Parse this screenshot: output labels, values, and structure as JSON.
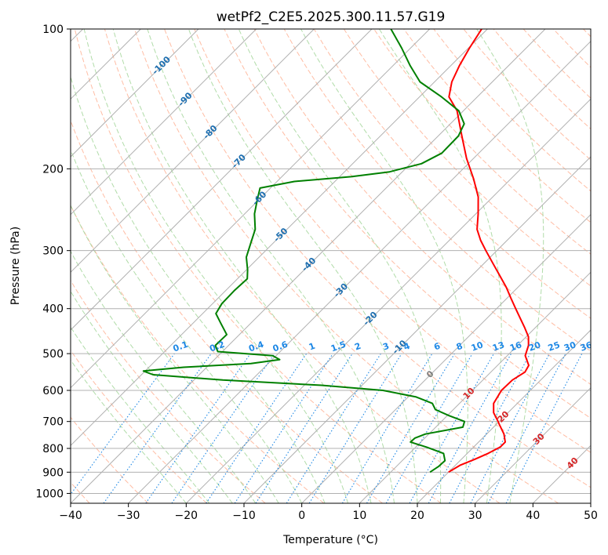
{
  "chart_data": {
    "type": "skew-t",
    "title": "wetPf2_C2E5.2025.300.11.57.G19",
    "xlabel": "Temperature (°C)",
    "ylabel": "Pressure (hPa)",
    "xlim": [
      -40,
      50
    ],
    "ylim_hPa": [
      1050,
      100
    ],
    "xticks": [
      -40,
      -30,
      -20,
      -10,
      0,
      10,
      20,
      30,
      40,
      50
    ],
    "xtick_labels": [
      "−40",
      "−30",
      "−20",
      "−10",
      "0",
      "10",
      "20",
      "30",
      "40",
      "50"
    ],
    "yticks": [
      100,
      200,
      300,
      400,
      500,
      600,
      700,
      800,
      900,
      1000
    ],
    "ytick_labels": [
      "100",
      "200",
      "300",
      "400",
      "500",
      "600",
      "700",
      "800",
      "900",
      "1000"
    ],
    "grid": true,
    "colors": {
      "temperature": "#ff0000",
      "dewpoint": "#008000",
      "isotherm": "#b0b0b0",
      "dry_adiabat": "#ffb69a",
      "moist_adiabat": "#a8d8a0",
      "mixing_ratio": "#1e88e5",
      "label_blue": "#1e6fb0",
      "label_red": "#d62728"
    },
    "series": [
      {
        "name": "Temperature",
        "points": [
          {
            "p": 900,
            "t": 20.0
          },
          {
            "p": 870,
            "t": 20.8
          },
          {
            "p": 845,
            "t": 22.3
          },
          {
            "p": 820,
            "t": 23.6
          },
          {
            "p": 795,
            "t": 24.6
          },
          {
            "p": 775,
            "t": 24.6
          },
          {
            "p": 745,
            "t": 23.0
          },
          {
            "p": 710,
            "t": 20.5
          },
          {
            "p": 700,
            "t": 19.8
          },
          {
            "p": 670,
            "t": 17.5
          },
          {
            "p": 640,
            "t": 15.9
          },
          {
            "p": 600,
            "t": 15.0
          },
          {
            "p": 570,
            "t": 15.1
          },
          {
            "p": 548,
            "t": 15.9
          },
          {
            "p": 530,
            "t": 15.4
          },
          {
            "p": 505,
            "t": 13.1
          },
          {
            "p": 480,
            "t": 11.9
          },
          {
            "p": 460,
            "t": 10.4
          },
          {
            "p": 440,
            "t": 8.2
          },
          {
            "p": 420,
            "t": 5.8
          },
          {
            "p": 400,
            "t": 3.3
          },
          {
            "p": 380,
            "t": 0.7
          },
          {
            "p": 360,
            "t": -2.0
          },
          {
            "p": 340,
            "t": -5.1
          },
          {
            "p": 320,
            "t": -8.4
          },
          {
            "p": 300,
            "t": -11.9
          },
          {
            "p": 285,
            "t": -14.6
          },
          {
            "p": 270,
            "t": -17.1
          },
          {
            "p": 250,
            "t": -19.6
          },
          {
            "p": 230,
            "t": -22.5
          },
          {
            "p": 210,
            "t": -26.5
          },
          {
            "p": 190,
            "t": -31.2
          },
          {
            "p": 170,
            "t": -35.9
          },
          {
            "p": 150,
            "t": -41.1
          },
          {
            "p": 140,
            "t": -44.9
          },
          {
            "p": 130,
            "t": -47.0
          },
          {
            "p": 120,
            "t": -48.5
          },
          {
            "p": 110,
            "t": -49.8
          },
          {
            "p": 100,
            "t": -51.0
          }
        ]
      },
      {
        "name": "Dewpoint",
        "points": [
          {
            "p": 900,
            "t": 16.8
          },
          {
            "p": 875,
            "t": 17.3
          },
          {
            "p": 850,
            "t": 17.4
          },
          {
            "p": 820,
            "t": 15.9
          },
          {
            "p": 795,
            "t": 11.9
          },
          {
            "p": 775,
            "t": 8.2
          },
          {
            "p": 760,
            "t": 8.3
          },
          {
            "p": 745,
            "t": 9.4
          },
          {
            "p": 720,
            "t": 14.7
          },
          {
            "p": 700,
            "t": 14.0
          },
          {
            "p": 680,
            "t": 10.3
          },
          {
            "p": 660,
            "t": 6.9
          },
          {
            "p": 640,
            "t": 5.3
          },
          {
            "p": 620,
            "t": 1.4
          },
          {
            "p": 600,
            "t": -5.5
          },
          {
            "p": 585,
            "t": -17.0
          },
          {
            "p": 570,
            "t": -35.0
          },
          {
            "p": 555,
            "t": -48.0
          },
          {
            "p": 545,
            "t": -50.3
          },
          {
            "p": 535,
            "t": -44.0
          },
          {
            "p": 525,
            "t": -33.0
          },
          {
            "p": 515,
            "t": -28.7
          },
          {
            "p": 505,
            "t": -30.6
          },
          {
            "p": 495,
            "t": -40.8
          },
          {
            "p": 480,
            "t": -42.3
          },
          {
            "p": 455,
            "t": -42.2
          },
          {
            "p": 430,
            "t": -45.2
          },
          {
            "p": 410,
            "t": -47.7
          },
          {
            "p": 390,
            "t": -48.4
          },
          {
            "p": 365,
            "t": -48.5
          },
          {
            "p": 345,
            "t": -48.3
          },
          {
            "p": 330,
            "t": -49.8
          },
          {
            "p": 310,
            "t": -52.2
          },
          {
            "p": 290,
            "t": -53.8
          },
          {
            "p": 270,
            "t": -55.5
          },
          {
            "p": 250,
            "t": -58.3
          },
          {
            "p": 232,
            "t": -60.4
          },
          {
            "p": 220,
            "t": -61.8
          },
          {
            "p": 213,
            "t": -57.0
          },
          {
            "p": 208,
            "t": -48.0
          },
          {
            "p": 203,
            "t": -42.2
          },
          {
            "p": 195,
            "t": -38.1
          },
          {
            "p": 185,
            "t": -36.4
          },
          {
            "p": 170,
            "t": -36.5
          },
          {
            "p": 160,
            "t": -37.6
          },
          {
            "p": 150,
            "t": -40.8
          },
          {
            "p": 140,
            "t": -46.2
          },
          {
            "p": 130,
            "t": -52.5
          },
          {
            "p": 120,
            "t": -57.0
          },
          {
            "p": 110,
            "t": -61.5
          },
          {
            "p": 100,
            "t": -66.7
          }
        ]
      }
    ],
    "isotherm_labels": [
      {
        "text": "-100",
        "t": -100,
        "p": 120
      },
      {
        "text": "-90",
        "t": -90,
        "p": 142
      },
      {
        "text": "-80",
        "t": -80,
        "p": 167
      },
      {
        "text": "-70",
        "t": -70,
        "p": 193
      },
      {
        "text": "-60",
        "t": -60,
        "p": 232
      },
      {
        "text": "-50",
        "t": -50,
        "p": 278
      },
      {
        "text": "-40",
        "t": -40,
        "p": 322
      },
      {
        "text": "-30",
        "t": -30,
        "p": 366
      },
      {
        "text": "-20",
        "t": -20,
        "p": 421
      },
      {
        "text": "-10",
        "t": -10,
        "p": 485
      },
      {
        "text": "0",
        "t": 0,
        "p": 555
      }
    ],
    "dry_adiabat_labels": [
      {
        "text": "10",
        "t": 10,
        "p": 610
      },
      {
        "text": "20",
        "t": 20,
        "p": 685
      },
      {
        "text": "30",
        "t": 30,
        "p": 765
      },
      {
        "text": "40",
        "t": 40,
        "p": 862
      }
    ],
    "mixing_ratios": [
      "0.1",
      "0.2",
      "0.4",
      "0.6",
      "1",
      "1.5",
      "2",
      "3",
      "4",
      "6",
      "8",
      "10",
      "13",
      "16",
      "20",
      "25",
      "30",
      "36"
    ],
    "mixing_ratio_values": [
      0.1,
      0.2,
      0.4,
      0.6,
      1,
      1.5,
      2,
      3,
      4,
      6,
      8,
      10,
      13,
      16,
      20,
      25,
      30,
      36
    ]
  }
}
